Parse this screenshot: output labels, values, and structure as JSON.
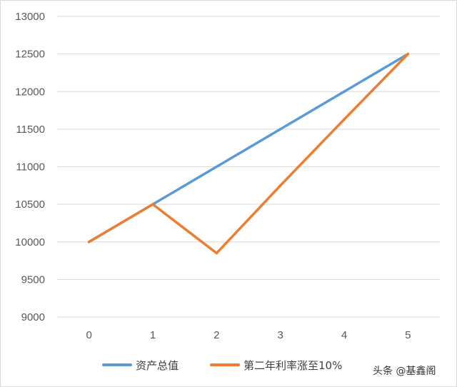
{
  "chart_data": {
    "type": "line",
    "x": [
      0,
      1,
      2,
      3,
      4,
      5
    ],
    "ylim": [
      9000,
      13000
    ],
    "yticks": [
      9000,
      9500,
      10000,
      10500,
      11000,
      11500,
      12000,
      12500,
      13000
    ],
    "grid": true,
    "legend_position": "bottom",
    "series": [
      {
        "name": "资产总值",
        "color": "#5b9bd5",
        "values": [
          10000,
          10500,
          11000,
          11500,
          12000,
          12500
        ]
      },
      {
        "name": "第二年利率涨至10%",
        "color": "#ed7d31",
        "values": [
          10000,
          10500,
          9850,
          10750,
          11630,
          12500
        ]
      }
    ]
  },
  "watermark": "头条 @基鑫阁"
}
